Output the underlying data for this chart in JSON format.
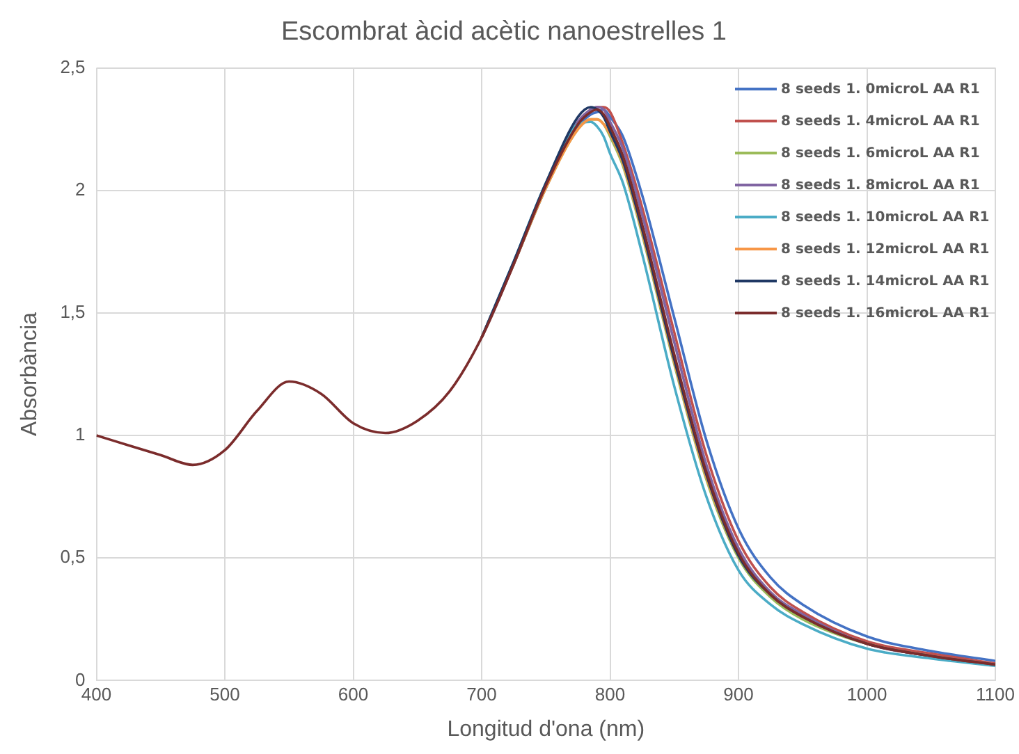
{
  "chart_data": {
    "type": "line",
    "title": "Escombrat àcid acètic nanoestrelles 1",
    "xlabel": "Longitud d'ona (nm)",
    "ylabel": "Absorbància",
    "x": [
      400,
      425,
      450,
      475,
      500,
      525,
      550,
      575,
      600,
      625,
      650,
      675,
      700,
      725,
      750,
      775,
      785,
      790,
      795,
      800,
      810,
      825,
      850,
      875,
      900,
      925,
      950,
      1000,
      1050,
      1100
    ],
    "xlim": [
      400,
      1100
    ],
    "xticks": [
      400,
      500,
      600,
      700,
      800,
      900,
      1000,
      1100
    ],
    "ylim": [
      0,
      2.5
    ],
    "yticks": [
      0,
      {
        "value": 0.5,
        "label": "0,5"
      },
      1,
      {
        "value": 1.5,
        "label": "1,5"
      },
      2,
      {
        "value": 2.5,
        "label": "2,5"
      }
    ],
    "grid": true,
    "legend": "top right",
    "marker": "none",
    "line_style": "solid",
    "series": [
      {
        "name": "8 seeds 1. 0microL AA R1",
        "color": "#4472c4",
        "values": [
          null,
          null,
          null,
          null,
          null,
          null,
          null,
          null,
          null,
          null,
          null,
          null,
          1.4,
          1.7,
          2.01,
          2.26,
          2.31,
          2.32,
          2.33,
          2.3,
          2.22,
          1.98,
          1.48,
          0.98,
          0.62,
          0.42,
          0.31,
          0.18,
          0.12,
          0.08
        ]
      },
      {
        "name": "8 seeds 1. 4microL AA R1",
        "color": "#c0504d",
        "values": [
          null,
          null,
          null,
          null,
          null,
          null,
          null,
          null,
          null,
          null,
          null,
          null,
          1.4,
          1.7,
          2.02,
          2.28,
          2.33,
          2.34,
          2.34,
          2.32,
          2.19,
          1.93,
          1.42,
          0.92,
          0.57,
          0.38,
          0.28,
          0.16,
          0.11,
          0.07
        ]
      },
      {
        "name": "8 seeds 1. 6microL AA R1",
        "color": "#9bbb59",
        "values": [
          null,
          null,
          null,
          null,
          null,
          null,
          null,
          null,
          null,
          null,
          null,
          null,
          1.4,
          1.7,
          2.01,
          2.25,
          2.29,
          2.29,
          2.27,
          2.22,
          2.1,
          1.82,
          1.29,
          0.82,
          0.5,
          0.34,
          0.25,
          0.15,
          0.1,
          0.065
        ]
      },
      {
        "name": "8 seeds 1. 8microL AA R1",
        "color": "#8064a2",
        "values": [
          null,
          null,
          null,
          null,
          null,
          null,
          null,
          null,
          null,
          null,
          null,
          null,
          1.4,
          1.7,
          2.02,
          2.28,
          2.33,
          2.34,
          2.33,
          2.28,
          2.17,
          1.9,
          1.38,
          0.88,
          0.54,
          0.36,
          0.27,
          0.15,
          0.1,
          0.065
        ]
      },
      {
        "name": "8 seeds 1. 10microL AA R1",
        "color": "#4bacc6",
        "values": [
          null,
          null,
          null,
          null,
          null,
          null,
          null,
          null,
          null,
          null,
          null,
          null,
          1.4,
          1.71,
          2.03,
          2.27,
          2.28,
          2.26,
          2.22,
          2.15,
          2.03,
          1.74,
          1.2,
          0.75,
          0.45,
          0.31,
          0.23,
          0.13,
          0.09,
          0.06
        ]
      },
      {
        "name": "8 seeds 1. 12microL AA R1",
        "color": "#f79646",
        "values": [
          null,
          null,
          null,
          null,
          null,
          null,
          null,
          null,
          null,
          null,
          null,
          null,
          1.4,
          1.7,
          2.01,
          2.25,
          2.29,
          2.29,
          2.27,
          2.23,
          2.11,
          1.83,
          1.3,
          0.83,
          0.51,
          0.35,
          0.26,
          0.15,
          0.1,
          0.065
        ]
      },
      {
        "name": "8 seeds 1. 14microL AA R1",
        "color": "#1f3864",
        "values": [
          null,
          null,
          null,
          null,
          null,
          null,
          null,
          null,
          null,
          null,
          null,
          null,
          1.4,
          1.71,
          2.03,
          2.3,
          2.34,
          2.33,
          2.3,
          2.24,
          2.12,
          1.84,
          1.31,
          0.84,
          0.51,
          0.35,
          0.26,
          0.15,
          0.1,
          0.065
        ]
      },
      {
        "name": "8 seeds 1. 16microL AA R1",
        "color": "#7b2c2c",
        "values": [
          1.0,
          0.96,
          0.92,
          0.88,
          0.94,
          1.1,
          1.22,
          1.17,
          1.05,
          1.01,
          1.06,
          1.18,
          1.4,
          1.7,
          2.02,
          2.27,
          2.32,
          2.33,
          2.31,
          2.26,
          2.14,
          1.86,
          1.33,
          0.85,
          0.52,
          0.35,
          0.26,
          0.15,
          0.1,
          0.065
        ]
      }
    ]
  }
}
